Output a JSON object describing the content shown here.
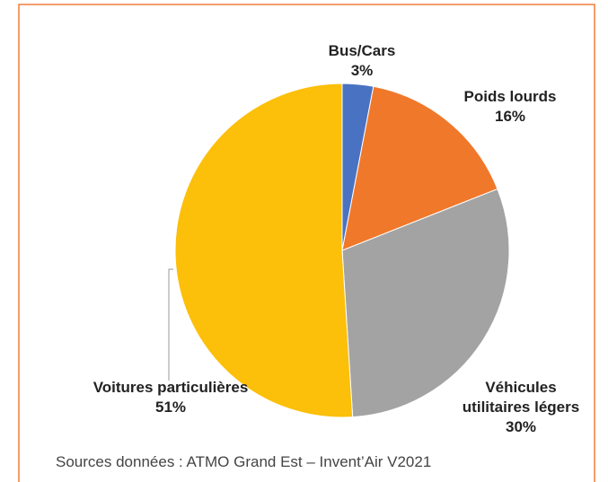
{
  "chart_data": {
    "type": "pie",
    "categories": [
      "Bus/Cars",
      "Poids lourds",
      "Véhicules utilitaires légers",
      "Voitures particulières"
    ],
    "values": [
      3,
      16,
      30,
      51
    ],
    "value_labels": [
      "3%",
      "16%",
      "30%",
      "51%"
    ],
    "colors": [
      "#4a72c2",
      "#f0782a",
      "#a3a3a3",
      "#fcbf0a"
    ],
    "source": "Sources données : ATMO Grand Est – Invent’Air V2021"
  }
}
